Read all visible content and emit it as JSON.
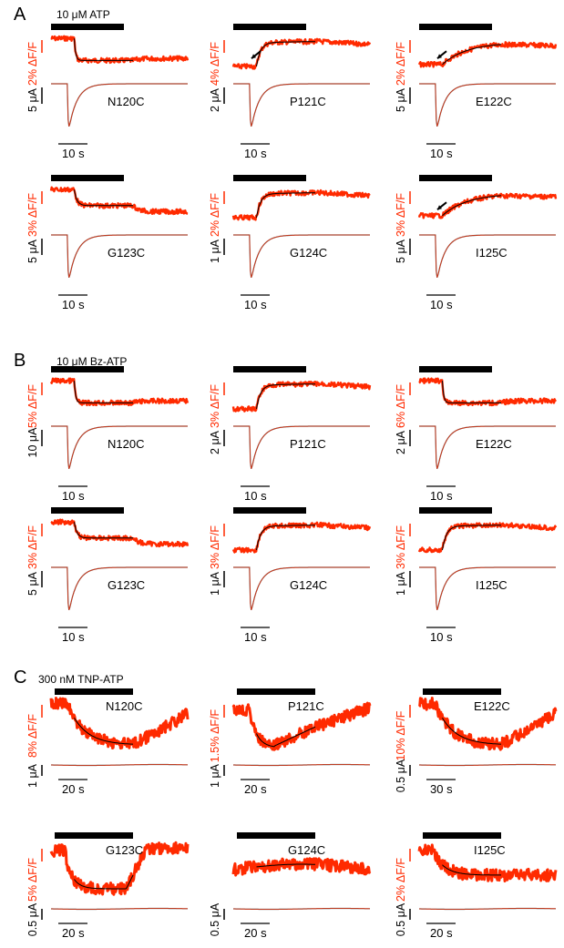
{
  "colors": {
    "fluorescence": "#ff2a00",
    "fit": "#000000",
    "current": "#555555",
    "bar": "#000000"
  },
  "sections": [
    {
      "label": "A",
      "drug": "10 μM ATP",
      "panels": [
        {
          "mutant": "N120C",
          "fluo_scale": "2% ΔF/F",
          "current_scale": "5 μA",
          "time_scale": "10 s",
          "fluo_shape": "quench",
          "arrow": false
        },
        {
          "mutant": "P121C",
          "fluo_scale": "4% ΔF/F",
          "current_scale": "2 μA",
          "time_scale": "10 s",
          "fluo_shape": "rise",
          "arrow": true
        },
        {
          "mutant": "E122C",
          "fluo_scale": "2% ΔF/F",
          "current_scale": "5 μA",
          "time_scale": "10 s",
          "fluo_shape": "slowrise",
          "arrow": true
        },
        {
          "mutant": "G123C",
          "fluo_scale": "3% ΔF/F",
          "current_scale": "5 μA",
          "time_scale": "10 s",
          "fluo_shape": "quench2",
          "arrow": false
        },
        {
          "mutant": "G124C",
          "fluo_scale": "2% ΔF/F",
          "current_scale": "1 μA",
          "time_scale": "10 s",
          "fluo_shape": "rise",
          "arrow": false
        },
        {
          "mutant": "I125C",
          "fluo_scale": "3% ΔF/F",
          "current_scale": "5 μA",
          "time_scale": "10 s",
          "fluo_shape": "slowrise",
          "arrow": true
        }
      ]
    },
    {
      "label": "B",
      "drug": "10 μM Bz-ATP",
      "panels": [
        {
          "mutant": "N120C",
          "fluo_scale": "5% ΔF/F",
          "current_scale": "10 μA",
          "time_scale": "10 s",
          "fluo_shape": "quench",
          "arrow": false
        },
        {
          "mutant": "P121C",
          "fluo_scale": "3% ΔF/F",
          "current_scale": "2 μA",
          "time_scale": "10 s",
          "fluo_shape": "rise",
          "arrow": false
        },
        {
          "mutant": "E122C",
          "fluo_scale": "6% ΔF/F",
          "current_scale": "2 μA",
          "time_scale": "10 s",
          "fluo_shape": "quench",
          "arrow": false
        },
        {
          "mutant": "G123C",
          "fluo_scale": "3% ΔF/F",
          "current_scale": "5 μA",
          "time_scale": "10 s",
          "fluo_shape": "quench2",
          "arrow": false
        },
        {
          "mutant": "G124C",
          "fluo_scale": "3% ΔF/F",
          "current_scale": "1 μA",
          "time_scale": "10 s",
          "fluo_shape": "rise",
          "arrow": false
        },
        {
          "mutant": "I125C",
          "fluo_scale": "3% ΔF/F",
          "current_scale": "1 μA",
          "time_scale": "10 s",
          "fluo_shape": "rise",
          "arrow": false
        }
      ]
    },
    {
      "label": "C",
      "drug": "300 nM TNP-ATP",
      "panels": [
        {
          "mutant": "N120C",
          "fluo_scale": "8% ΔF/F",
          "current_scale": "1 μA",
          "time_scale": "20 s",
          "fluo_shape": "tnp_down",
          "arrow": false
        },
        {
          "mutant": "P121C",
          "fluo_scale": "1.5% ΔF/F",
          "current_scale": "1 μA",
          "time_scale": "20 s",
          "fluo_shape": "tnp_v",
          "arrow": false
        },
        {
          "mutant": "E122C",
          "fluo_scale": "10% ΔF/F",
          "current_scale": "0.5 μA",
          "time_scale": "30 s",
          "fluo_shape": "tnp_down",
          "arrow": false
        },
        {
          "mutant": "G123C",
          "fluo_scale": "5% ΔF/F",
          "current_scale": "0.5 μA",
          "time_scale": "20 s",
          "fluo_shape": "tnp_fast",
          "arrow": false
        },
        {
          "mutant": "G124C",
          "fluo_scale": "",
          "current_scale": "0.5 μA",
          "time_scale": "20 s",
          "fluo_shape": "tnp_flat",
          "arrow": false
        },
        {
          "mutant": "I125C",
          "fluo_scale": "2% ΔF/F",
          "current_scale": "0.5 μA",
          "time_scale": "20 s",
          "fluo_shape": "tnp_decay",
          "arrow": false
        }
      ]
    }
  ]
}
